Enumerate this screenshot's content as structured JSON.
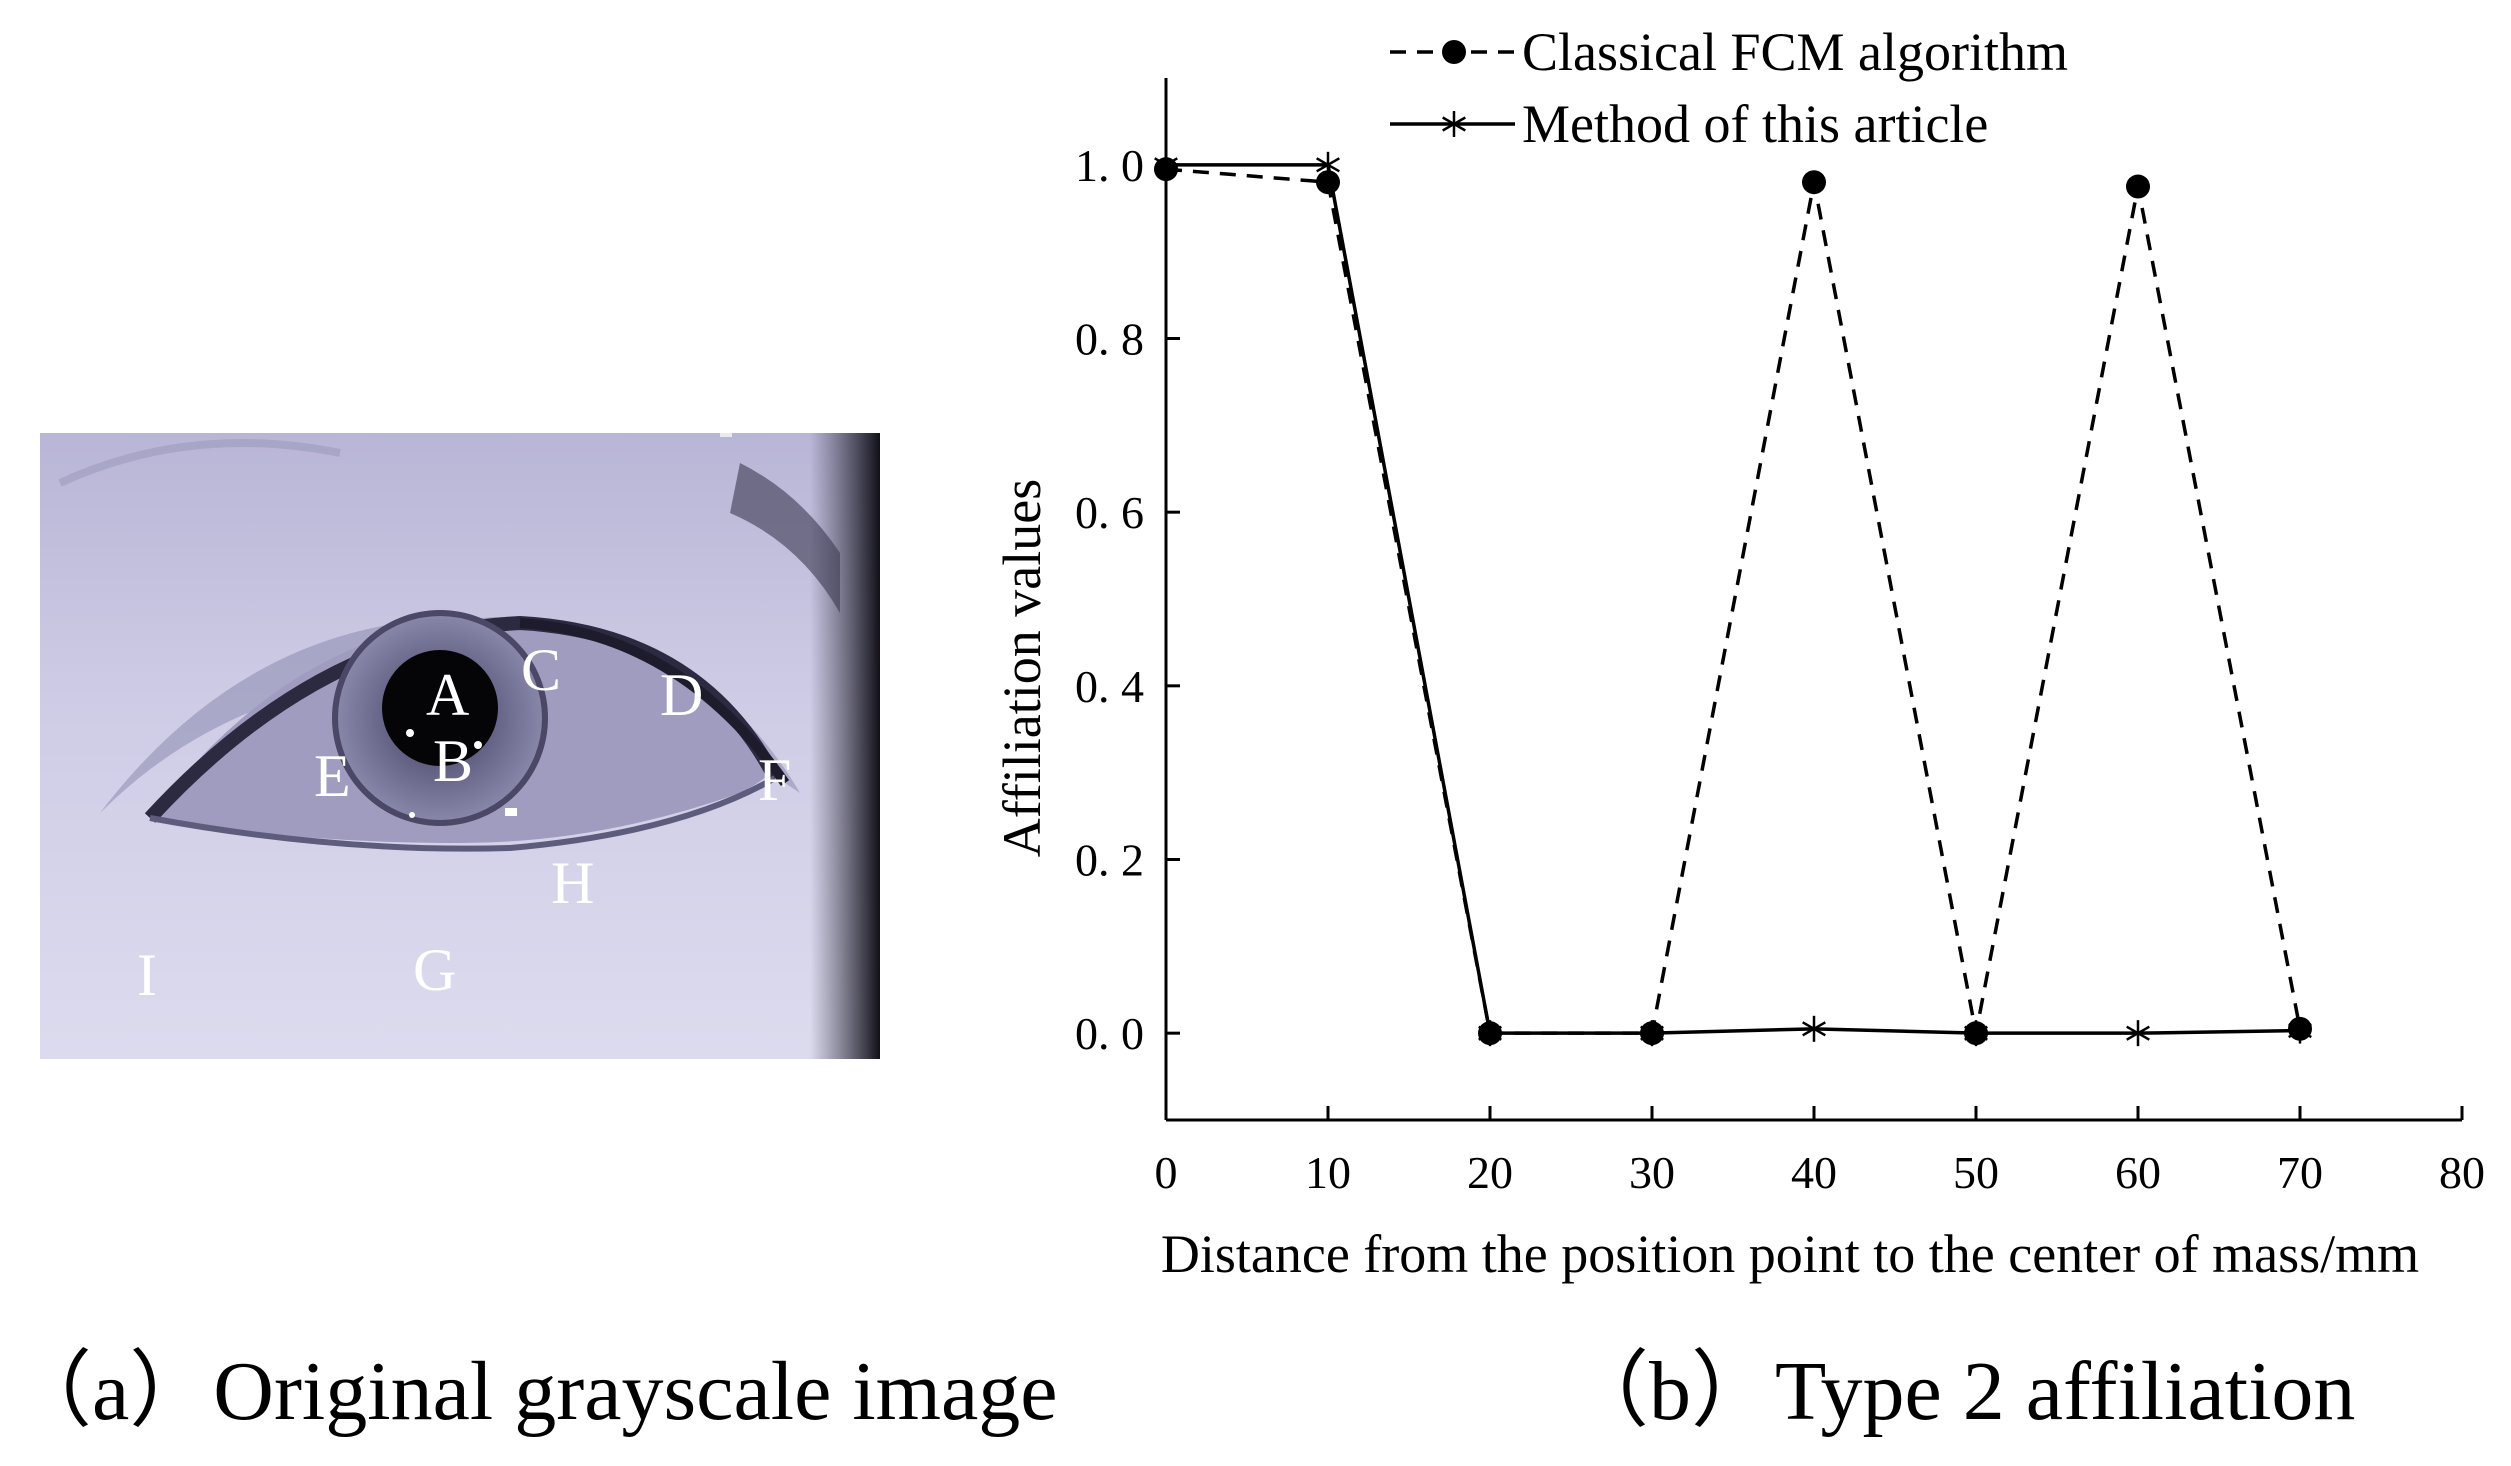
{
  "panel_a": {
    "caption": "（a）Original grayscale image",
    "region_labels": [
      "A",
      "B",
      "C",
      "D",
      "E",
      "F",
      "G",
      "H",
      "I"
    ]
  },
  "panel_b": {
    "caption": "（b）Type 2 affiliation"
  },
  "chart_data": {
    "type": "line",
    "xlabel": "Distance from the position point to the center of mass/mm",
    "ylabel": "Affiliation values",
    "xlim": [
      0,
      80
    ],
    "ylim": [
      -0.1,
      1.1
    ],
    "x_ticks": [
      0,
      10,
      20,
      30,
      40,
      50,
      60,
      70,
      80
    ],
    "x_tick_labels": [
      "0",
      "10",
      "20",
      "30",
      "40",
      "50",
      "60",
      "70",
      "80"
    ],
    "y_ticks": [
      0.0,
      0.2,
      0.4,
      0.6,
      0.8,
      1.0
    ],
    "y_tick_labels": [
      "0. 0",
      "0. 2",
      "0. 4",
      "0. 6",
      "0. 8",
      "1. 0"
    ],
    "grid": false,
    "legend_position": "top",
    "series": [
      {
        "name": "Classical FCM algorithm",
        "line_style": "dashed",
        "marker": "filled-circle",
        "color": "#000000",
        "x": [
          0,
          10,
          20,
          30,
          40,
          50,
          60,
          70
        ],
        "y": [
          0.995,
          0.98,
          0.0,
          0.0,
          0.98,
          0.0,
          0.975,
          0.005
        ]
      },
      {
        "name": "Method of this article",
        "line_style": "solid",
        "marker": "asterisk",
        "color": "#000000",
        "x": [
          0,
          10,
          20,
          30,
          40,
          50,
          60,
          70
        ],
        "y": [
          1.0,
          1.0,
          0.0,
          0.0,
          0.005,
          0.0,
          0.0,
          0.003
        ]
      }
    ]
  }
}
